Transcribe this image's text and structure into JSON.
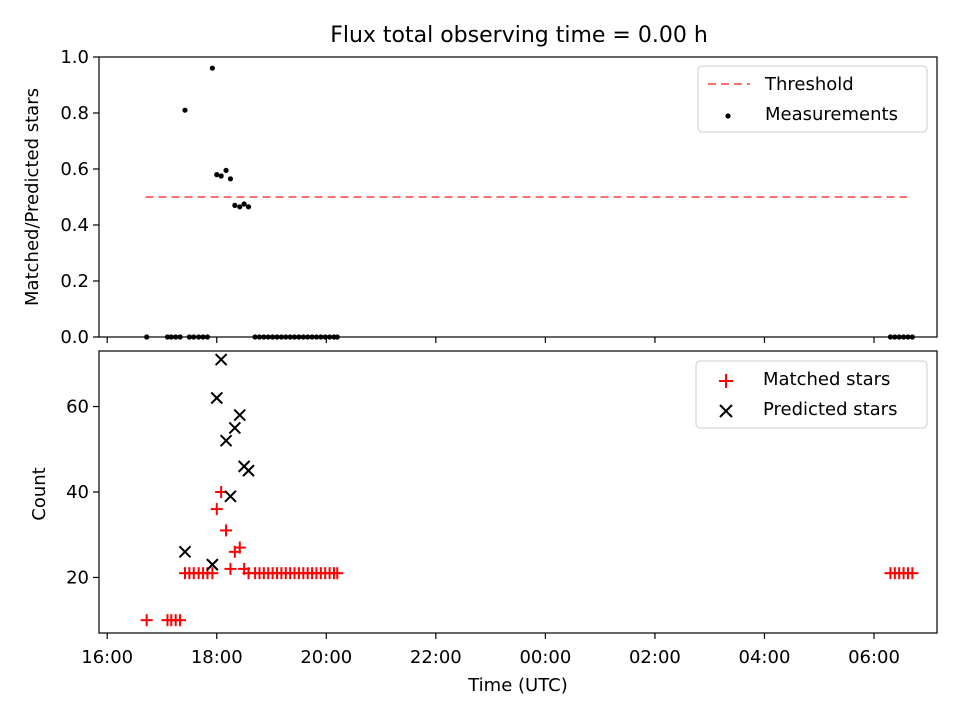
{
  "figure_title": "Flux total observing time = 0.00 h",
  "chart_data": [
    {
      "type": "scatter",
      "ylabel": "Matched/Predicted stars",
      "xlabel": "",
      "ylim": [
        0,
        1.0
      ],
      "yticks": [
        0.0,
        0.2,
        0.4,
        0.6,
        0.8,
        1.0
      ],
      "ytick_labels": [
        "0.0",
        "0.2",
        "0.4",
        "0.6",
        "0.8",
        "1.0"
      ],
      "legend_position": "top-right",
      "legend": [
        {
          "label": "Threshold",
          "style": "dashed-line",
          "color": "#ff7070"
        },
        {
          "label": "Measurements",
          "style": "dot",
          "color": "#000000"
        }
      ],
      "threshold": {
        "x_start": 16.7,
        "x_end": 30.6,
        "y": 0.5,
        "color": "#ff7070"
      },
      "series": [
        {
          "name": "Measurements",
          "color": "#000000",
          "points": [
            [
              16.72,
              0.0
            ],
            [
              17.1,
              0.0
            ],
            [
              17.17,
              0.0
            ],
            [
              17.25,
              0.0
            ],
            [
              17.33,
              0.0
            ],
            [
              17.42,
              0.81
            ],
            [
              17.5,
              0.0
            ],
            [
              17.58,
              0.0
            ],
            [
              17.67,
              0.0
            ],
            [
              17.75,
              0.0
            ],
            [
              17.83,
              0.0
            ],
            [
              17.92,
              0.96
            ],
            [
              18.0,
              0.58
            ],
            [
              18.08,
              0.575
            ],
            [
              18.17,
              0.595
            ],
            [
              18.25,
              0.565
            ],
            [
              18.33,
              0.47
            ],
            [
              18.42,
              0.465
            ],
            [
              18.5,
              0.475
            ],
            [
              18.58,
              0.465
            ],
            [
              18.7,
              0.0
            ],
            [
              18.78,
              0.0
            ],
            [
              18.86,
              0.0
            ],
            [
              18.94,
              0.0
            ],
            [
              19.02,
              0.0
            ],
            [
              19.1,
              0.0
            ],
            [
              19.18,
              0.0
            ],
            [
              19.26,
              0.0
            ],
            [
              19.34,
              0.0
            ],
            [
              19.42,
              0.0
            ],
            [
              19.5,
              0.0
            ],
            [
              19.58,
              0.0
            ],
            [
              19.66,
              0.0
            ],
            [
              19.74,
              0.0
            ],
            [
              19.82,
              0.0
            ],
            [
              19.9,
              0.0
            ],
            [
              19.98,
              0.0
            ],
            [
              20.06,
              0.0
            ],
            [
              20.14,
              0.0
            ],
            [
              20.2,
              0.0
            ],
            [
              30.3,
              0.0
            ],
            [
              30.38,
              0.0
            ],
            [
              30.46,
              0.0
            ],
            [
              30.54,
              0.0
            ],
            [
              30.62,
              0.0
            ],
            [
              30.7,
              0.0
            ]
          ]
        }
      ]
    },
    {
      "type": "scatter",
      "ylabel": "Count",
      "xlabel": "Time (UTC)",
      "xlim": [
        15.85,
        31.15
      ],
      "ylim": [
        7,
        73
      ],
      "yticks": [
        20,
        40,
        60
      ],
      "ytick_labels": [
        "20",
        "40",
        "60"
      ],
      "xticks": [
        16,
        18,
        20,
        22,
        24,
        26,
        28,
        30
      ],
      "xtick_labels": [
        "16:00",
        "18:00",
        "20:00",
        "22:00",
        "00:00",
        "02:00",
        "04:00",
        "06:00"
      ],
      "legend_position": "top-right",
      "legend": [
        {
          "label": "Matched stars",
          "style": "plus",
          "color": "#ff0000"
        },
        {
          "label": "Predicted stars",
          "style": "x",
          "color": "#000000"
        }
      ],
      "series": [
        {
          "name": "Matched stars",
          "marker": "plus",
          "color": "#ff0000",
          "points": [
            [
              16.72,
              10
            ],
            [
              17.1,
              10
            ],
            [
              17.17,
              10
            ],
            [
              17.25,
              10
            ],
            [
              17.33,
              10
            ],
            [
              17.42,
              21
            ],
            [
              17.5,
              21
            ],
            [
              17.58,
              21
            ],
            [
              17.67,
              21
            ],
            [
              17.75,
              21
            ],
            [
              17.83,
              21
            ],
            [
              17.92,
              21
            ],
            [
              18.0,
              36
            ],
            [
              18.08,
              40
            ],
            [
              18.17,
              31
            ],
            [
              18.25,
              22
            ],
            [
              18.33,
              26
            ],
            [
              18.42,
              27
            ],
            [
              18.5,
              22
            ],
            [
              18.58,
              21
            ],
            [
              18.7,
              21
            ],
            [
              18.78,
              21
            ],
            [
              18.86,
              21
            ],
            [
              18.94,
              21
            ],
            [
              19.02,
              21
            ],
            [
              19.1,
              21
            ],
            [
              19.18,
              21
            ],
            [
              19.26,
              21
            ],
            [
              19.34,
              21
            ],
            [
              19.42,
              21
            ],
            [
              19.5,
              21
            ],
            [
              19.58,
              21
            ],
            [
              19.66,
              21
            ],
            [
              19.74,
              21
            ],
            [
              19.82,
              21
            ],
            [
              19.9,
              21
            ],
            [
              19.98,
              21
            ],
            [
              20.06,
              21
            ],
            [
              20.14,
              21
            ],
            [
              20.2,
              21
            ],
            [
              30.3,
              21
            ],
            [
              30.38,
              21
            ],
            [
              30.46,
              21
            ],
            [
              30.54,
              21
            ],
            [
              30.62,
              21
            ],
            [
              30.7,
              21
            ]
          ]
        },
        {
          "name": "Predicted stars",
          "marker": "x",
          "color": "#000000",
          "points": [
            [
              17.42,
              26
            ],
            [
              17.92,
              23
            ],
            [
              18.0,
              62
            ],
            [
              18.08,
              71
            ],
            [
              18.17,
              52
            ],
            [
              18.25,
              39
            ],
            [
              18.33,
              55
            ],
            [
              18.42,
              58
            ],
            [
              18.5,
              46
            ],
            [
              18.58,
              45
            ]
          ]
        }
      ]
    }
  ]
}
